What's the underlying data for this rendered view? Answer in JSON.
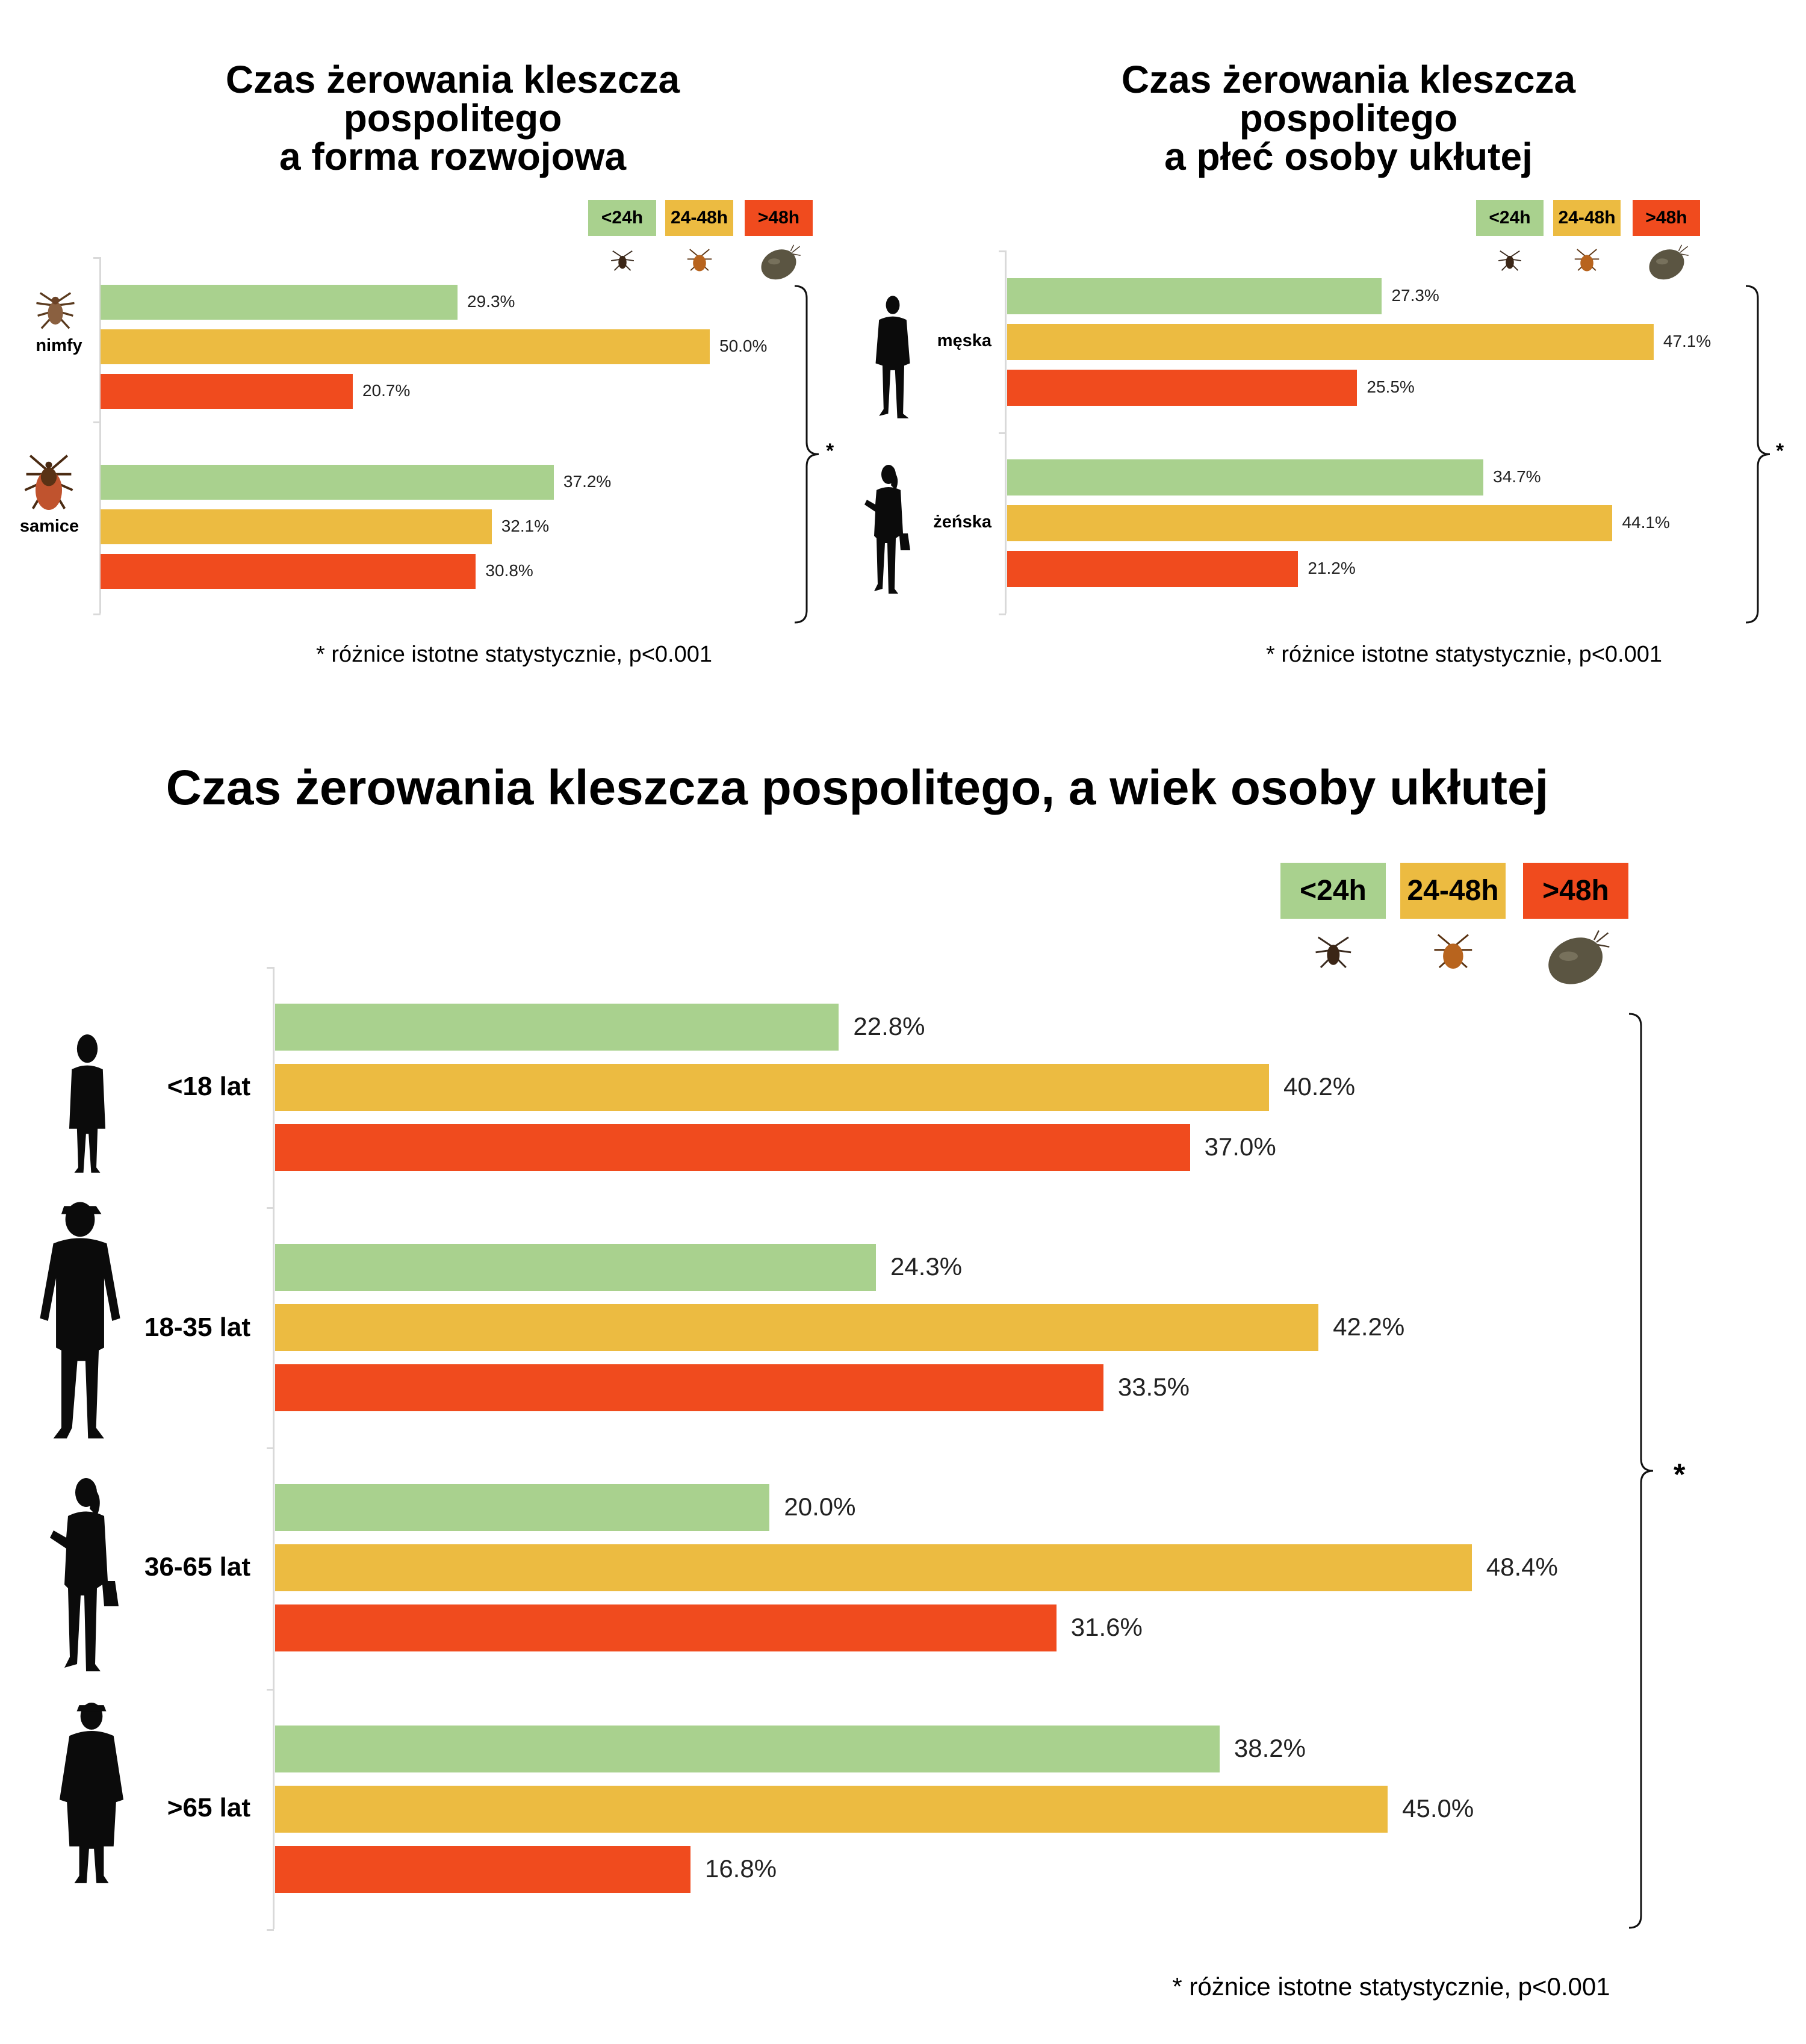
{
  "colors": {
    "lt24": "#a9d18e",
    "h24_48": "#ecbb41",
    "gt48": "#f04b1e"
  },
  "chart_data": [
    {
      "type": "bar",
      "orientation": "horizontal",
      "title_line1": "Czas żerowania kleszcza pospolitego",
      "title_line2": "a forma rozwojowa",
      "categories": [
        "nimfy",
        "samice"
      ],
      "legend": [
        "<24h",
        "24-48h",
        ">48h"
      ],
      "series": [
        {
          "name": "<24h",
          "values": [
            29.3,
            37.2
          ]
        },
        {
          "name": "24-48h",
          "values": [
            50.0,
            32.1
          ]
        },
        {
          "name": ">48h",
          "values": [
            20.7,
            30.8
          ]
        }
      ],
      "significance": "*",
      "footnote": "* różnice istotne statystycznie, p<0.001"
    },
    {
      "type": "bar",
      "orientation": "horizontal",
      "title_line1": "Czas żerowania kleszcza pospolitego",
      "title_line2": "a płeć osoby ukłutej",
      "categories": [
        "męska",
        "żeńska"
      ],
      "legend": [
        "<24h",
        "24-48h",
        ">48h"
      ],
      "series": [
        {
          "name": "<24h",
          "values": [
            27.3,
            34.7
          ]
        },
        {
          "name": "24-48h",
          "values": [
            47.1,
            44.1
          ]
        },
        {
          "name": ">48h",
          "values": [
            25.5,
            21.2
          ]
        }
      ],
      "significance": "*",
      "footnote": "* różnice istotne statystycznie, p<0.001"
    },
    {
      "type": "bar",
      "orientation": "horizontal",
      "title_line1": "Czas żerowania kleszcza pospolitego, a wiek osoby ukłutej",
      "categories": [
        "<18 lat",
        "18-35 lat",
        "36-65 lat",
        ">65 lat"
      ],
      "legend": [
        "<24h",
        "24-48h",
        ">48h"
      ],
      "series": [
        {
          "name": "<24h",
          "values": [
            22.8,
            24.3,
            20.0,
            38.2
          ]
        },
        {
          "name": "24-48h",
          "values": [
            40.2,
            42.2,
            48.4,
            45.0
          ]
        },
        {
          "name": ">48h",
          "values": [
            37.0,
            33.5,
            31.6,
            16.8
          ]
        }
      ],
      "significance": "*",
      "footnote": "* różnice istotne statystycznie, p<0.001"
    }
  ]
}
